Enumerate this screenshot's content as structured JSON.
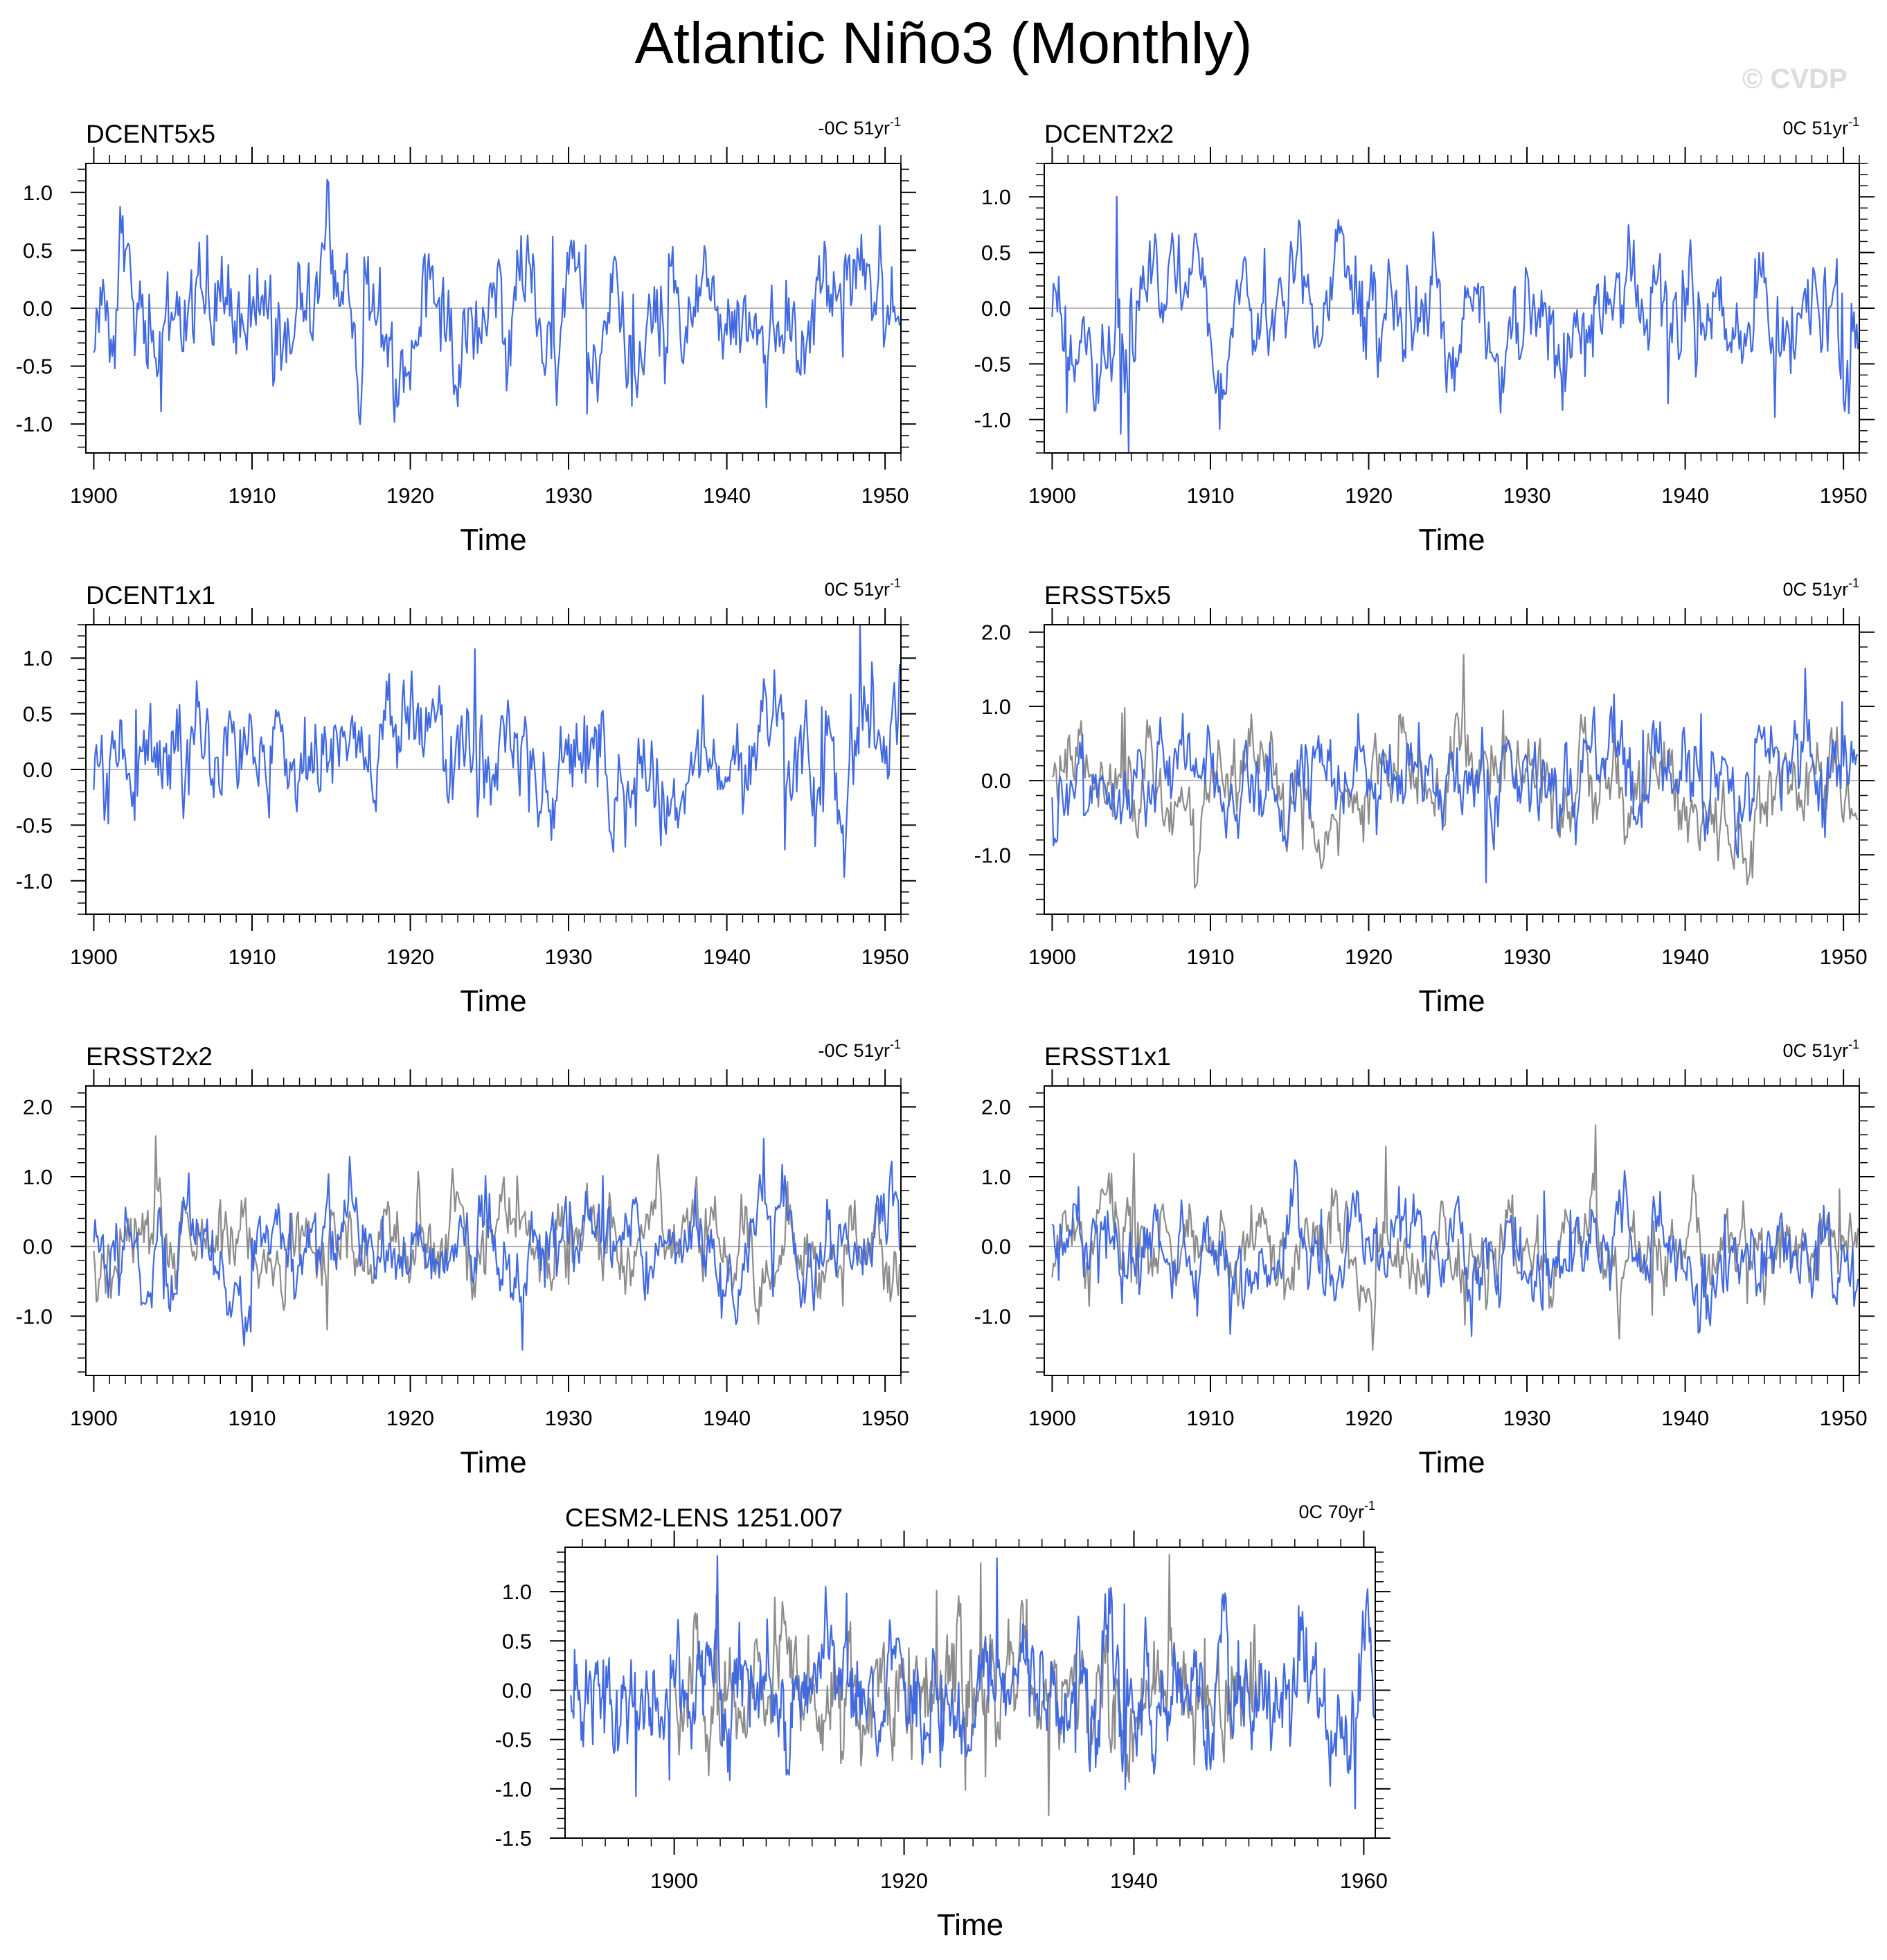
{
  "title": "Atlantic Niño3 (Monthly)",
  "watermark": "© CVDP",
  "colors": {
    "obs": "#4169e1",
    "ref": "#8c8c8c",
    "frame": "#000000",
    "zero": "#a0a0a0"
  },
  "chart_data": [
    {
      "type": "line",
      "name": "DCENT5x5",
      "stat_main": "-0C 51yr",
      "stat_sup": "-1",
      "xlabel": "Time",
      "xlim": [
        1899.5,
        1951
      ],
      "xticks": [
        1900,
        1910,
        1920,
        1930,
        1940,
        1950
      ],
      "ylim": [
        -1.25,
        1.25
      ],
      "yticks": [
        "1.0",
        "0.5",
        "0.0",
        "-0.5",
        "-1.0"
      ],
      "ytick_values": [
        1.0,
        0.5,
        0.0,
        -0.5,
        -1.0
      ],
      "minor_y": 0.1,
      "minor_x": 1,
      "grey_series": false,
      "seed": 11,
      "amp": 0.32,
      "series": [
        {
          "name": "DCENT5x5",
          "start": 1900,
          "end": 1951,
          "color": "#4169e1"
        }
      ]
    },
    {
      "type": "line",
      "name": "DCENT2x2",
      "stat_main": "0C 51yr",
      "stat_sup": "-1",
      "xlabel": "Time",
      "xlim": [
        1899.5,
        1951
      ],
      "xticks": [
        1900,
        1910,
        1920,
        1930,
        1940,
        1950
      ],
      "ylim": [
        -1.3,
        1.3
      ],
      "yticks": [
        "1.0",
        "0.5",
        "0.0",
        "-0.5",
        "-1.0"
      ],
      "ytick_values": [
        1.0,
        0.5,
        0.0,
        -0.5,
        -1.0
      ],
      "minor_y": 0.1,
      "minor_x": 1,
      "grey_series": false,
      "seed": 12,
      "amp": 0.32,
      "series": [
        {
          "name": "DCENT2x2",
          "start": 1900,
          "end": 1951,
          "color": "#4169e1"
        }
      ]
    },
    {
      "type": "line",
      "name": "DCENT1x1",
      "stat_main": "0C 51yr",
      "stat_sup": "-1",
      "xlabel": "Time",
      "xlim": [
        1899.5,
        1951
      ],
      "xticks": [
        1900,
        1910,
        1920,
        1930,
        1940,
        1950
      ],
      "ylim": [
        -1.3,
        1.3
      ],
      "yticks": [
        "1.0",
        "0.5",
        "0.0",
        "-0.5",
        "-1.0"
      ],
      "ytick_values": [
        1.0,
        0.5,
        0.0,
        -0.5,
        -1.0
      ],
      "minor_y": 0.1,
      "minor_x": 1,
      "grey_series": false,
      "seed": 13,
      "amp": 0.32,
      "series": [
        {
          "name": "DCENT1x1",
          "start": 1900,
          "end": 1951,
          "color": "#4169e1"
        }
      ]
    },
    {
      "type": "line",
      "name": "ERSST5x5",
      "stat_main": "0C 51yr",
      "stat_sup": "-1",
      "xlabel": "Time",
      "xlim": [
        1899.5,
        1951
      ],
      "xticks": [
        1900,
        1910,
        1920,
        1930,
        1940,
        1950
      ],
      "ylim": [
        -1.8,
        2.1
      ],
      "yticks": [
        "2.0",
        "1.0",
        "0.0",
        "-1.0"
      ],
      "ytick_values": [
        2.0,
        1.0,
        0.0,
        -1.0
      ],
      "minor_y": 0.2,
      "minor_x": 1,
      "grey_series": true,
      "seed": 14,
      "amp": 0.38,
      "series": [
        {
          "name": "ERSST5x5",
          "start": 1900,
          "end": 1951,
          "color": "#4169e1"
        },
        {
          "name": "reference",
          "start": 1900,
          "end": 1951,
          "color": "#8c8c8c"
        }
      ]
    },
    {
      "type": "line",
      "name": "ERSST2x2",
      "stat_main": "-0C 51yr",
      "stat_sup": "-1",
      "xlabel": "Time",
      "xlim": [
        1899.5,
        1951
      ],
      "xticks": [
        1900,
        1910,
        1920,
        1930,
        1940,
        1950
      ],
      "ylim": [
        -1.85,
        2.3
      ],
      "yticks": [
        "2.0",
        "1.0",
        "0.0",
        "-1.0"
      ],
      "ytick_values": [
        2.0,
        1.0,
        0.0,
        -1.0
      ],
      "minor_y": 0.2,
      "minor_x": 1,
      "grey_series": true,
      "seed": 15,
      "amp": 0.38,
      "series": [
        {
          "name": "ERSST2x2",
          "start": 1900,
          "end": 1951,
          "color": "#4169e1"
        },
        {
          "name": "reference",
          "start": 1900,
          "end": 1951,
          "color": "#8c8c8c"
        }
      ]
    },
    {
      "type": "line",
      "name": "ERSST1x1",
      "stat_main": "0C 51yr",
      "stat_sup": "-1",
      "xlabel": "Time",
      "xlim": [
        1899.5,
        1951
      ],
      "xticks": [
        1900,
        1910,
        1920,
        1930,
        1940,
        1950
      ],
      "ylim": [
        -1.85,
        2.3
      ],
      "yticks": [
        "2.0",
        "1.0",
        "0.0",
        "-1.0"
      ],
      "ytick_values": [
        2.0,
        1.0,
        0.0,
        -1.0
      ],
      "minor_y": 0.2,
      "minor_x": 1,
      "grey_series": true,
      "seed": 16,
      "amp": 0.38,
      "series": [
        {
          "name": "ERSST1x1",
          "start": 1900,
          "end": 1951,
          "color": "#4169e1"
        },
        {
          "name": "reference",
          "start": 1900,
          "end": 1951,
          "color": "#8c8c8c"
        }
      ]
    },
    {
      "type": "line",
      "name": "CESM2-LENS 1251.007",
      "stat_main": "0C 70yr",
      "stat_sup": "-1",
      "xlabel": "Time",
      "xlim": [
        1890.5,
        1961
      ],
      "xticks": [
        1900,
        1920,
        1940,
        1960
      ],
      "ylim": [
        -1.5,
        1.45
      ],
      "yticks": [
        "1.0",
        "0.5",
        "0.0",
        "-0.5",
        "-1.0",
        "-1.5"
      ],
      "ytick_values": [
        1.0,
        0.5,
        0.0,
        -0.5,
        -1.0,
        -1.5
      ],
      "minor_y": 0.1,
      "minor_x": 2,
      "grey_series": true,
      "seed": 17,
      "amp": 0.34,
      "series": [
        {
          "name": "CESM2-LENS 1251.007",
          "start": 1891,
          "end": 1961,
          "color": "#4169e1"
        },
        {
          "name": "reference",
          "start": 1900,
          "end": 1951,
          "color": "#8c8c8c"
        }
      ]
    }
  ]
}
